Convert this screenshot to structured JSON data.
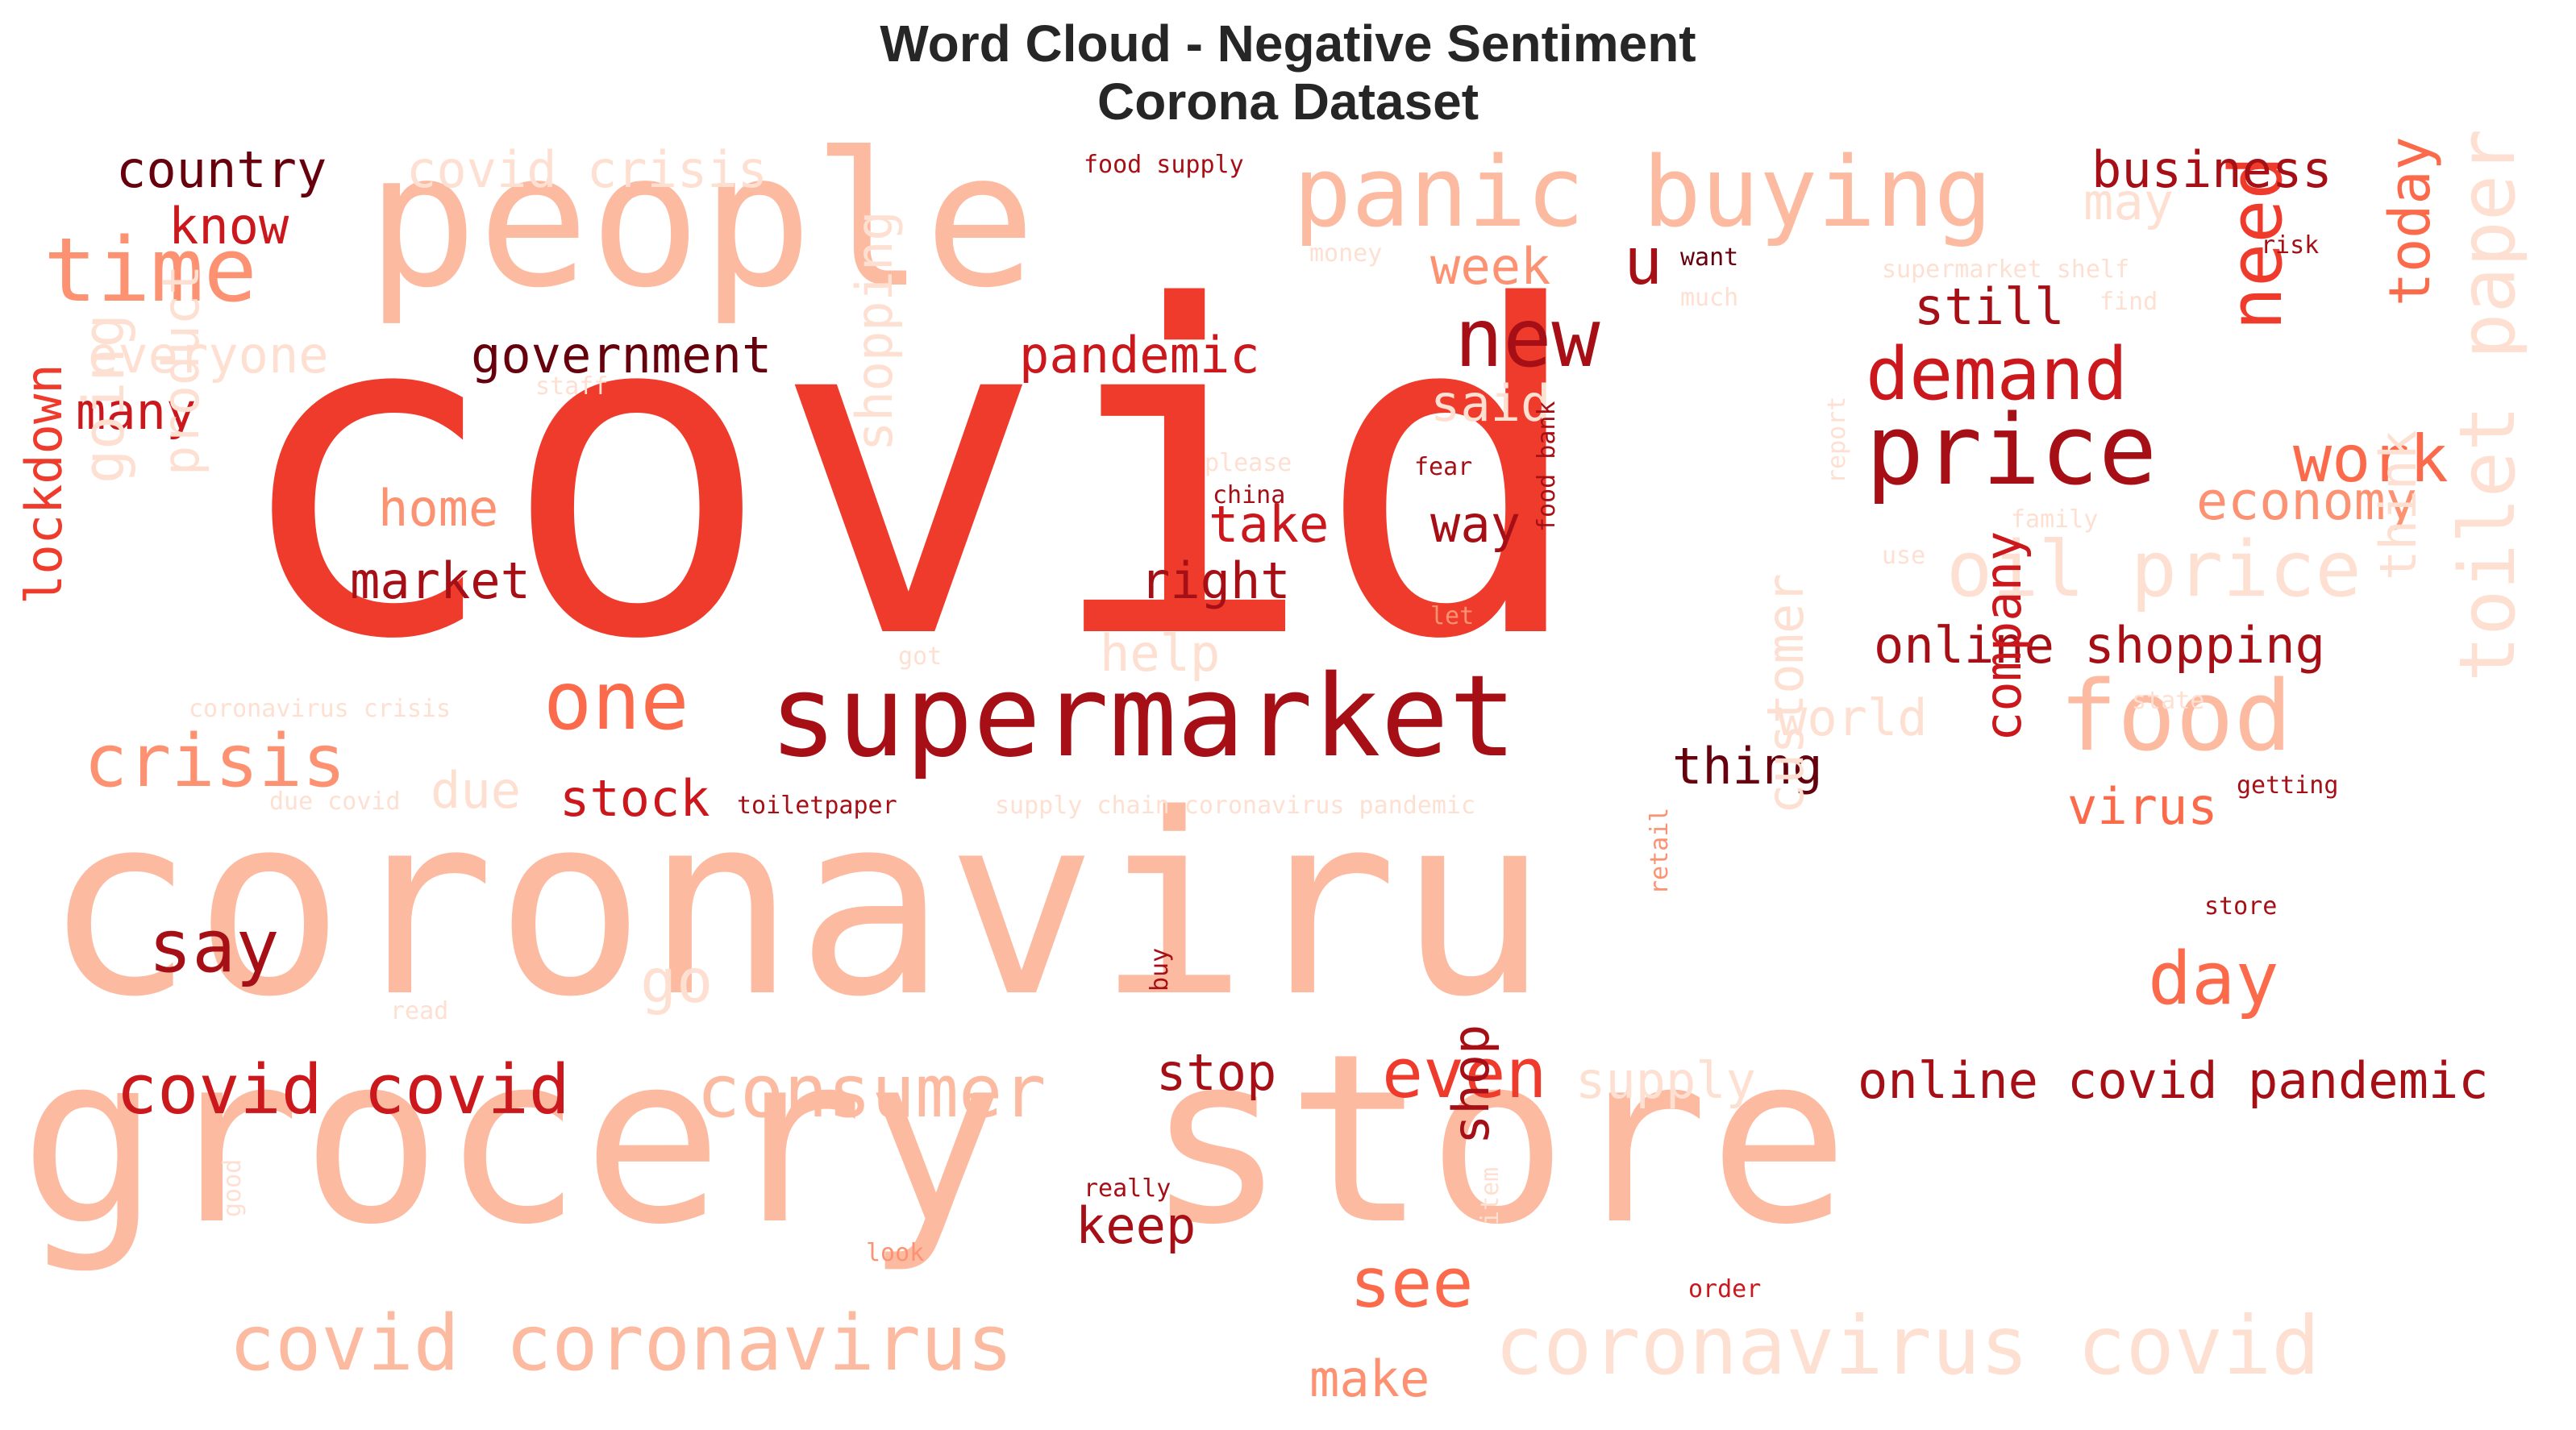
{
  "title": {
    "line1": "Word Cloud - Negative Sentiment",
    "line2": "Corona Dataset"
  },
  "palette": [
    "#fde0d2",
    "#fcbba1",
    "#fc9272",
    "#fb6a4a",
    "#ef3b2c",
    "#cb181d",
    "#a50f15",
    "#67000d"
  ],
  "words": [
    {
      "text": "covid",
      "color": "#ef3b2c"
    },
    {
      "text": "coronaviru",
      "color": "#fcbba1"
    },
    {
      "text": "grocery store",
      "color": "#fcbba1"
    },
    {
      "text": "people",
      "color": "#fcbba1"
    },
    {
      "text": "supermarket",
      "color": "#a50f15"
    },
    {
      "text": "panic buying",
      "color": "#fcbba1"
    },
    {
      "text": "time",
      "color": "#fc9272"
    },
    {
      "text": "price",
      "color": "#a50f15"
    },
    {
      "text": "food",
      "color": "#fcbba1"
    },
    {
      "text": "new",
      "color": "#a50f15"
    },
    {
      "text": "demand",
      "color": "#cb181d"
    },
    {
      "text": "need",
      "color": "#ef3b2c"
    },
    {
      "text": "today",
      "color": "#fb6a4a"
    },
    {
      "text": "toilet paper",
      "color": "#fde0d2"
    },
    {
      "text": "oil price",
      "color": "#fde0d2"
    },
    {
      "text": "work",
      "color": "#fb6a4a"
    },
    {
      "text": "economy",
      "color": "#fc9272"
    },
    {
      "text": "one",
      "color": "#fb6a4a"
    },
    {
      "text": "crisis",
      "color": "#fc9272"
    },
    {
      "text": "say",
      "color": "#a50f15"
    },
    {
      "text": "day",
      "color": "#fb6a4a"
    },
    {
      "text": "covid covid",
      "color": "#cb181d"
    },
    {
      "text": "consumer",
      "color": "#fcbba1"
    },
    {
      "text": "even",
      "color": "#ef3b2c"
    },
    {
      "text": "covid coronavirus",
      "color": "#fcbba1"
    },
    {
      "text": "coronavirus covid",
      "color": "#fde0d2"
    },
    {
      "text": "covid pandemic",
      "color": "#a50f15"
    },
    {
      "text": "online shopping",
      "color": "#a50f15"
    },
    {
      "text": "country",
      "color": "#67000d"
    },
    {
      "text": "covid crisis",
      "color": "#fde0d2"
    },
    {
      "text": "business",
      "color": "#a50f15"
    },
    {
      "text": "know",
      "color": "#cb181d"
    },
    {
      "text": "everyone",
      "color": "#fde0d2"
    },
    {
      "text": "government",
      "color": "#67000d"
    },
    {
      "text": "pandemic",
      "color": "#cb181d"
    },
    {
      "text": "week",
      "color": "#fc9272"
    },
    {
      "text": "u",
      "color": "#a50f15"
    },
    {
      "text": "still",
      "color": "#a50f15"
    },
    {
      "text": "many",
      "color": "#cb181d"
    },
    {
      "text": "home",
      "color": "#fc9272"
    },
    {
      "text": "market",
      "color": "#a50f15"
    },
    {
      "text": "take",
      "color": "#cb181d"
    },
    {
      "text": "way",
      "color": "#a50f15"
    },
    {
      "text": "right",
      "color": "#a50f15"
    },
    {
      "text": "said",
      "color": "#fde0d2"
    },
    {
      "text": "help",
      "color": "#fde0d2"
    },
    {
      "text": "world",
      "color": "#fde0d2"
    },
    {
      "text": "thing",
      "color": "#67000d"
    },
    {
      "text": "stock",
      "color": "#cb181d"
    },
    {
      "text": "due",
      "color": "#fde0d2"
    },
    {
      "text": "virus",
      "color": "#fb6a4a"
    },
    {
      "text": "go",
      "color": "#fde0d2"
    },
    {
      "text": "stop",
      "color": "#a50f15"
    },
    {
      "text": "supply",
      "color": "#fde0d2"
    },
    {
      "text": "online",
      "color": "#a50f15"
    },
    {
      "text": "keep",
      "color": "#a50f15"
    },
    {
      "text": "see",
      "color": "#fb6a4a"
    },
    {
      "text": "make",
      "color": "#fc9272"
    },
    {
      "text": "shop",
      "color": "#a50f15"
    },
    {
      "text": "lockdown",
      "color": "#ef3b2c"
    },
    {
      "text": "going",
      "color": "#fde0d2"
    },
    {
      "text": "product",
      "color": "#fde0d2"
    },
    {
      "text": "shopping",
      "color": "#fde0d2"
    },
    {
      "text": "customer",
      "color": "#fde0d2"
    },
    {
      "text": "company",
      "color": "#cb181d"
    },
    {
      "text": "think",
      "color": "#fde0d2"
    },
    {
      "text": "may",
      "color": "#fde0d2"
    },
    {
      "text": "food supply",
      "color": "#a50f15"
    },
    {
      "text": "money",
      "color": "#fde0d2"
    },
    {
      "text": "want",
      "color": "#67000d"
    },
    {
      "text": "much",
      "color": "#fde0d2"
    },
    {
      "text": "supermarket shelf",
      "color": "#fde0d2"
    },
    {
      "text": "find",
      "color": "#fde0d2"
    },
    {
      "text": "risk",
      "color": "#a50f15"
    },
    {
      "text": "staff",
      "color": "#fde0d2"
    },
    {
      "text": "please",
      "color": "#fde0d2"
    },
    {
      "text": "china",
      "color": "#a50f15"
    },
    {
      "text": "fear",
      "color": "#a50f15"
    },
    {
      "text": "food bank",
      "color": "#a50f15"
    },
    {
      "text": "report",
      "color": "#fde0d2"
    },
    {
      "text": "family",
      "color": "#fde0d2"
    },
    {
      "text": "use",
      "color": "#fde0d2"
    },
    {
      "text": "let",
      "color": "#fc9272"
    },
    {
      "text": "got",
      "color": "#fde0d2"
    },
    {
      "text": "coronavirus crisis",
      "color": "#fde0d2"
    },
    {
      "text": "due covid",
      "color": "#fde0d2"
    },
    {
      "text": "toiletpaper",
      "color": "#a50f15"
    },
    {
      "text": "supply chain coronavirus pandemic",
      "color": "#fde0d2"
    },
    {
      "text": "state",
      "color": "#fde0d2"
    },
    {
      "text": "getting",
      "color": "#a50f15"
    },
    {
      "text": "retail",
      "color": "#fc9272"
    },
    {
      "text": "store",
      "color": "#a50f15"
    },
    {
      "text": "read",
      "color": "#fde0d2"
    },
    {
      "text": "buy",
      "color": "#a50f15"
    },
    {
      "text": "really",
      "color": "#a50f15"
    },
    {
      "text": "good",
      "color": "#fde0d2"
    },
    {
      "text": "look",
      "color": "#fc9272"
    },
    {
      "text": "item",
      "color": "#fde0d2"
    },
    {
      "text": "order",
      "color": "#cb181d"
    }
  ]
}
